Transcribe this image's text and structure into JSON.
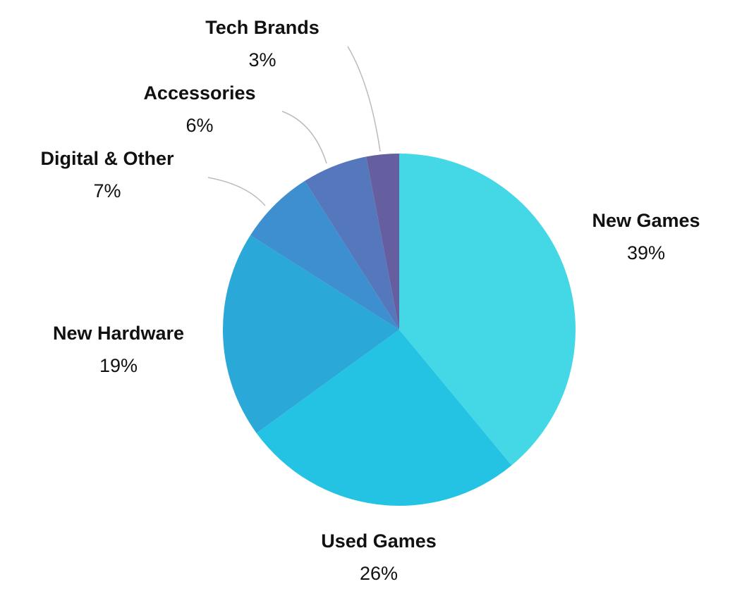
{
  "chart_data": {
    "type": "pie",
    "categories": [
      "New Games",
      "Used Games",
      "New Hardware",
      "Digital & Other",
      "Accessories",
      "Tech Brands"
    ],
    "values": [
      39,
      26,
      19,
      7,
      6,
      3
    ],
    "value_labels": [
      "39%",
      "26%",
      "19%",
      "7%",
      "6%",
      "3%"
    ],
    "colors": [
      "#44d7e6",
      "#25c3e3",
      "#2aa8d8",
      "#3e8fcf",
      "#5577bb",
      "#655fa0"
    ]
  }
}
